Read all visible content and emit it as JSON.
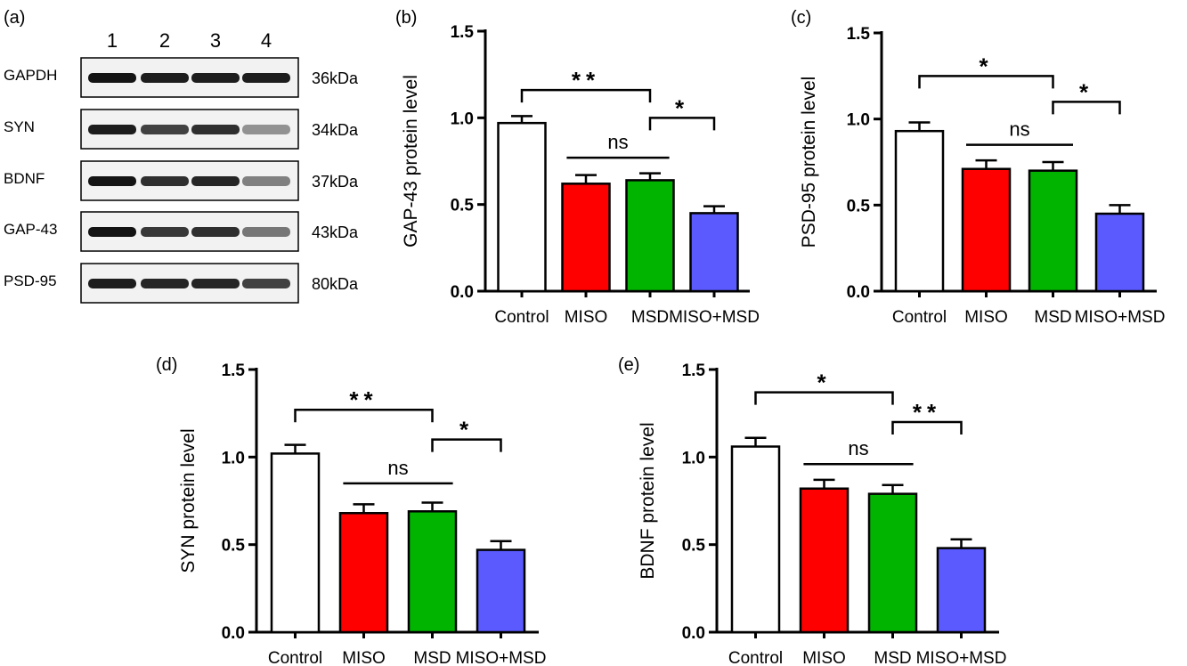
{
  "blot": {
    "panel_label": "(a)",
    "lanes": [
      "1",
      "2",
      "3",
      "4"
    ],
    "rows": [
      {
        "protein": "GAPDH",
        "size": "36kDa",
        "intensity": [
          1.0,
          0.95,
          0.95,
          0.95
        ]
      },
      {
        "protein": "SYN",
        "size": "34kDa",
        "intensity": [
          0.95,
          0.75,
          0.85,
          0.3
        ]
      },
      {
        "protein": "BDNF",
        "size": "37kDa",
        "intensity": [
          1.0,
          0.85,
          0.9,
          0.4
        ]
      },
      {
        "protein": "GAP-43",
        "size": "43kDa",
        "intensity": [
          1.0,
          0.8,
          0.85,
          0.45
        ]
      },
      {
        "protein": "PSD-95",
        "size": "80kDa",
        "intensity": [
          0.95,
          0.9,
          0.9,
          0.75
        ]
      }
    ]
  },
  "colors": {
    "Control": "#ffffff",
    "MISO": "#ff0000",
    "MSD": "#00b400",
    "MISO+MSD": "#5a5aff",
    "axis": "#000000"
  },
  "chart_data": [
    {
      "panel_label": "(b)",
      "type": "bar",
      "categories": [
        "Control",
        "MISO",
        "MSD",
        "MISO+MSD"
      ],
      "values": [
        0.97,
        0.62,
        0.64,
        0.45
      ],
      "errors": [
        0.04,
        0.05,
        0.04,
        0.04
      ],
      "ylabel": "GAP-43 protein level",
      "ylim": [
        0,
        1.5
      ],
      "yticks": [
        "0.0",
        "0.5",
        "1.0",
        "1.5"
      ],
      "significance": [
        {
          "from": 0,
          "to": 2,
          "label": "**",
          "level": 1.16
        },
        {
          "from": 2,
          "to": 3,
          "label": "*",
          "level": 1.0
        },
        {
          "from": 1,
          "to": 2,
          "label": "ns",
          "level": 0.77,
          "plain": true
        }
      ]
    },
    {
      "panel_label": "(c)",
      "type": "bar",
      "categories": [
        "Control",
        "MISO",
        "MSD",
        "MISO+MSD"
      ],
      "values": [
        0.93,
        0.71,
        0.7,
        0.45
      ],
      "errors": [
        0.05,
        0.05,
        0.05,
        0.05
      ],
      "ylabel": "PSD-95 protein level",
      "ylim": [
        0,
        1.5
      ],
      "yticks": [
        "0.0",
        "0.5",
        "1.0",
        "1.5"
      ],
      "significance": [
        {
          "from": 0,
          "to": 2,
          "label": "*",
          "level": 1.25
        },
        {
          "from": 2,
          "to": 3,
          "label": "*",
          "level": 1.1
        },
        {
          "from": 1,
          "to": 2,
          "label": "ns",
          "level": 0.85,
          "plain": true
        }
      ]
    },
    {
      "panel_label": "(d)",
      "type": "bar",
      "categories": [
        "Control",
        "MISO",
        "MSD",
        "MISO+MSD"
      ],
      "values": [
        1.02,
        0.68,
        0.69,
        0.47
      ],
      "errors": [
        0.05,
        0.05,
        0.05,
        0.05
      ],
      "ylabel": "SYN protein level",
      "ylim": [
        0,
        1.5
      ],
      "yticks": [
        "0.0",
        "0.5",
        "1.0",
        "1.5"
      ],
      "significance": [
        {
          "from": 0,
          "to": 2,
          "label": "**",
          "level": 1.27
        },
        {
          "from": 2,
          "to": 3,
          "label": "*",
          "level": 1.1
        },
        {
          "from": 1,
          "to": 2,
          "label": "ns",
          "level": 0.85,
          "plain": true
        }
      ]
    },
    {
      "panel_label": "(e)",
      "type": "bar",
      "categories": [
        "Control",
        "MISO",
        "MSD",
        "MISO+MSD"
      ],
      "values": [
        1.06,
        0.82,
        0.79,
        0.48
      ],
      "errors": [
        0.05,
        0.05,
        0.05,
        0.05
      ],
      "ylabel": "BDNF protein level",
      "ylim": [
        0,
        1.5
      ],
      "yticks": [
        "0.0",
        "0.5",
        "1.0",
        "1.5"
      ],
      "significance": [
        {
          "from": 0,
          "to": 2,
          "label": "*",
          "level": 1.37
        },
        {
          "from": 2,
          "to": 3,
          "label": "**",
          "level": 1.2
        },
        {
          "from": 1,
          "to": 2,
          "label": "ns",
          "level": 0.96,
          "plain": true
        }
      ]
    }
  ]
}
